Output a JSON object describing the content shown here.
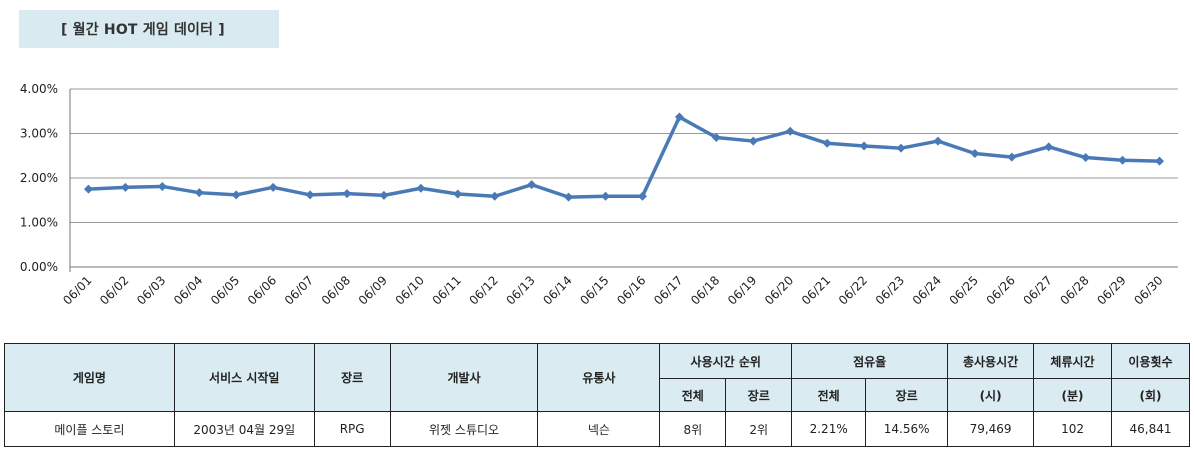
{
  "title": "[ 월간 HOT 게임 데이터 ]",
  "chart_data": {
    "type": "line",
    "title": "",
    "xlabel": "",
    "ylabel": "",
    "ylim": [
      0,
      4
    ],
    "yticks": [
      "0.00%",
      "1.00%",
      "2.00%",
      "3.00%",
      "4.00%"
    ],
    "grid": true,
    "legend": "none",
    "color": "#4a7ab5",
    "categories": [
      "06/01",
      "06/02",
      "06/03",
      "06/04",
      "06/05",
      "06/06",
      "06/07",
      "06/08",
      "06/09",
      "06/10",
      "06/11",
      "06/12",
      "06/13",
      "06/14",
      "06/15",
      "06/16",
      "06/17",
      "06/18",
      "06/19",
      "06/20",
      "06/21",
      "06/22",
      "06/23",
      "06/24",
      "06/25",
      "06/26",
      "06/27",
      "06/28",
      "06/29",
      "06/30"
    ],
    "values": [
      1.75,
      1.79,
      1.81,
      1.67,
      1.62,
      1.79,
      1.62,
      1.65,
      1.61,
      1.77,
      1.64,
      1.59,
      1.85,
      1.57,
      1.59,
      1.59,
      3.37,
      2.91,
      2.83,
      3.05,
      2.78,
      2.72,
      2.67,
      2.83,
      2.55,
      2.47,
      2.7,
      2.46,
      2.4,
      2.38
    ]
  },
  "table": {
    "headers": {
      "game_name": "게임명",
      "service_start": "서비스 시작일",
      "genre": "장르",
      "developer": "개발사",
      "publisher": "유통사",
      "usage_rank": "사용시간 순위",
      "share": "점유율",
      "total_time": "총사용시간",
      "total_time_unit": "(시)",
      "stay_time": "체류시간",
      "stay_time_unit": "(분)",
      "usage_count": "이용횟수",
      "usage_count_unit": "(회)",
      "overall": "전체",
      "by_genre": "장르"
    },
    "row": {
      "game_name": "메이플 스토리",
      "service_start": "2003년 04월 29일",
      "genre": "RPG",
      "developer": "위젯 스튜디오",
      "publisher": "넥슨",
      "rank_overall": "8위",
      "rank_genre": "2위",
      "share_overall": "2.21%",
      "share_genre": "14.56%",
      "total_time": "79,469",
      "stay_time": "102",
      "usage_count": "46,841"
    }
  }
}
